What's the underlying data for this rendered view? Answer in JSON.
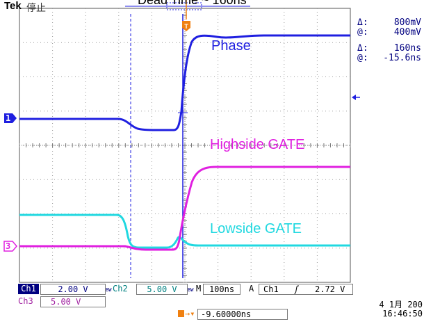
{
  "header": {
    "brand": "Tek",
    "run_state": "停止",
    "title_fragment": "Dead Time ~ 160ns"
  },
  "cursor_readouts": {
    "volt_delta": "800mV",
    "volt_at": "400mV",
    "time_delta": "160ns",
    "time_at": "-15.6ns",
    "delta_symbol": "Δ:",
    "at_symbol": "@:"
  },
  "trace_labels": {
    "phase": "Phase",
    "highside": "Highside GATE",
    "lowside": "Lowside GATE"
  },
  "channel_markers": {
    "ch1": "1",
    "ch3": "3",
    "trigger": "T"
  },
  "status_bar": {
    "ch1_label": "Ch1",
    "ch1_scale": "2.00 V",
    "ch2_label": "Ch2",
    "ch2_scale": "5.00 V",
    "bw_mark": "BW",
    "timebase_mark": "M",
    "timebase": "100ns",
    "trigger_mode": "A",
    "trigger_source": "Ch1",
    "trigger_slope": "ʃ",
    "trigger_level": "2.72 V",
    "ch3_label": "Ch3",
    "ch3_scale": "5.00 V",
    "trigger_position": "-9.60000ns",
    "date": "4 1月 200",
    "time": "16:46:50"
  },
  "colors": {
    "phase": "#1f1fe0",
    "highside": "#e020e0",
    "lowside": "#20d8e0",
    "trigger": "#f08010",
    "grid": "#808080"
  }
}
